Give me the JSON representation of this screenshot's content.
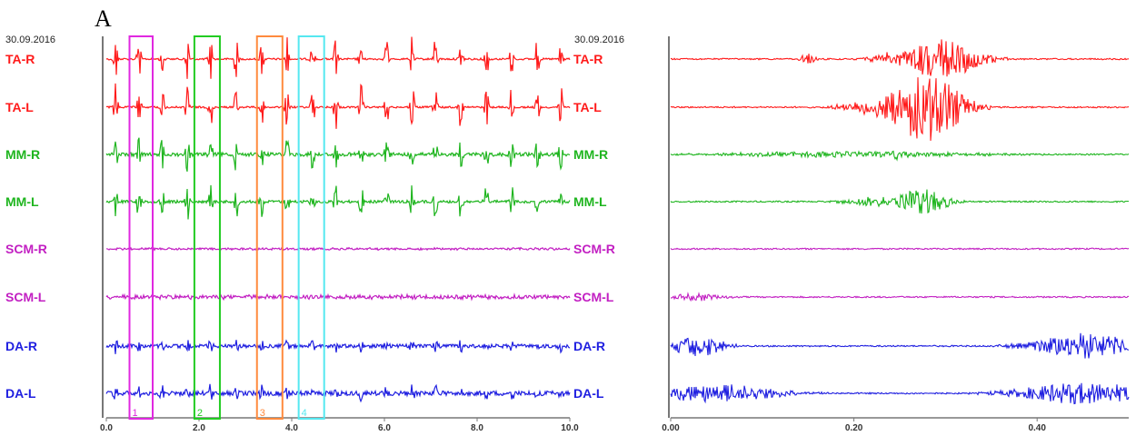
{
  "panel_letter": "A",
  "left_date": "30.09.2016",
  "middle_date": "30.09.2016",
  "chart_data": [
    {
      "type": "line",
      "panel": "overview",
      "x_ticks": [
        "0.0",
        "2.0",
        "4.0",
        "6.0",
        "8.0",
        "10.0"
      ],
      "xlim": [
        0,
        10
      ],
      "burst_times": [
        0.2,
        0.7,
        1.2,
        1.75,
        2.25,
        2.8,
        3.35,
        3.9,
        4.45,
        4.95,
        5.5,
        6.05,
        6.6,
        7.1,
        7.65,
        8.2,
        8.75,
        9.3,
        9.8
      ],
      "series": [
        {
          "name": "TA-R",
          "color": "#ff1a1a",
          "amp": 26,
          "noise": 2,
          "mode": "bursts"
        },
        {
          "name": "TA-L",
          "color": "#ff1a1a",
          "amp": 28,
          "noise": 2,
          "mode": "bursts"
        },
        {
          "name": "MM-R",
          "color": "#1fb51f",
          "amp": 20,
          "noise": 4,
          "mode": "bursts"
        },
        {
          "name": "MM-L",
          "color": "#1fb51f",
          "amp": 22,
          "noise": 3,
          "mode": "bursts"
        },
        {
          "name": "SCM-R",
          "color": "#c21fc2",
          "amp": 2,
          "noise": 1,
          "mode": "flat"
        },
        {
          "name": "SCM-L",
          "color": "#c21fc2",
          "amp": 4,
          "noise": 1.5,
          "mode": "flat"
        },
        {
          "name": "DA-R",
          "color": "#1f1fe0",
          "amp": 9,
          "noise": 4,
          "mode": "bursts"
        },
        {
          "name": "DA-L",
          "color": "#1f1fe0",
          "amp": 10,
          "noise": 5,
          "mode": "bursts"
        }
      ],
      "windows": [
        {
          "label": "1",
          "start": 0.5,
          "end": 1.0,
          "color": "#e028e0"
        },
        {
          "label": "2",
          "start": 1.9,
          "end": 2.45,
          "color": "#22cc22"
        },
        {
          "label": "3",
          "start": 3.25,
          "end": 3.8,
          "color": "#ff8a3d"
        },
        {
          "label": "4",
          "start": 4.15,
          "end": 4.7,
          "color": "#55e8f0"
        }
      ]
    },
    {
      "type": "line",
      "panel": "detail",
      "x_ticks": [
        "0.00",
        "0.20",
        "0.40"
      ],
      "xlim": [
        0,
        0.5
      ],
      "series": [
        {
          "name": "TA-R",
          "color": "#ff1a1a"
        },
        {
          "name": "TA-L",
          "color": "#ff1a1a"
        },
        {
          "name": "MM-R",
          "color": "#1fb51f"
        },
        {
          "name": "MM-L",
          "color": "#1fb51f"
        },
        {
          "name": "SCM-R",
          "color": "#c21fc2"
        },
        {
          "name": "SCM-L",
          "color": "#c21fc2"
        },
        {
          "name": "DA-R",
          "color": "#1f1fe0"
        },
        {
          "name": "DA-L",
          "color": "#1f1fe0"
        }
      ]
    }
  ]
}
